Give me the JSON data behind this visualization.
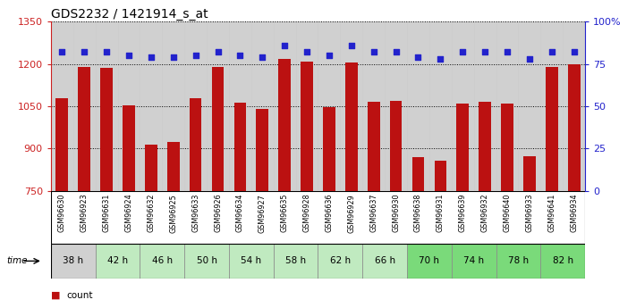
{
  "title": "GDS2232 / 1421914_s_at",
  "samples": [
    "GSM96630",
    "GSM96923",
    "GSM96631",
    "GSM96924",
    "GSM96632",
    "GSM96925",
    "GSM96633",
    "GSM96926",
    "GSM96634",
    "GSM96927",
    "GSM96635",
    "GSM96928",
    "GSM96636",
    "GSM96929",
    "GSM96637",
    "GSM96930",
    "GSM96638",
    "GSM96931",
    "GSM96639",
    "GSM96932",
    "GSM96640",
    "GSM96933",
    "GSM96641",
    "GSM96934"
  ],
  "counts": [
    1080,
    1188,
    1185,
    1052,
    915,
    923,
    1080,
    1188,
    1062,
    1040,
    1218,
    1208,
    1048,
    1205,
    1065,
    1068,
    870,
    858,
    1060,
    1065,
    1060,
    872,
    1190,
    1200
  ],
  "percentile_ranks": [
    82,
    82,
    82,
    80,
    79,
    79,
    80,
    82,
    80,
    79,
    86,
    82,
    80,
    86,
    82,
    82,
    79,
    78,
    82,
    82,
    82,
    78,
    82,
    82
  ],
  "time_groups": [
    {
      "label": "38 h",
      "indices": [
        0,
        1
      ],
      "color": "#d0d0d0"
    },
    {
      "label": "42 h",
      "indices": [
        2,
        3
      ],
      "color": "#c0eac0"
    },
    {
      "label": "46 h",
      "indices": [
        4,
        5
      ],
      "color": "#c0eac0"
    },
    {
      "label": "50 h",
      "indices": [
        6,
        7
      ],
      "color": "#c0eac0"
    },
    {
      "label": "54 h",
      "indices": [
        8,
        9
      ],
      "color": "#c0eac0"
    },
    {
      "label": "58 h",
      "indices": [
        10,
        11
      ],
      "color": "#c0eac0"
    },
    {
      "label": "62 h",
      "indices": [
        12,
        13
      ],
      "color": "#c0eac0"
    },
    {
      "label": "66 h",
      "indices": [
        14,
        15
      ],
      "color": "#c0eac0"
    },
    {
      "label": "70 h",
      "indices": [
        16,
        17
      ],
      "color": "#7ada7a"
    },
    {
      "label": "74 h",
      "indices": [
        18,
        19
      ],
      "color": "#7ada7a"
    },
    {
      "label": "78 h",
      "indices": [
        20,
        21
      ],
      "color": "#7ada7a"
    },
    {
      "label": "82 h",
      "indices": [
        22,
        23
      ],
      "color": "#7ada7a"
    }
  ],
  "sample_bg_color": "#d0d0d0",
  "bar_color": "#bb1111",
  "dot_color": "#2222cc",
  "ylim_left": [
    750,
    1350
  ],
  "ylim_right": [
    0,
    100
  ],
  "yticks_left": [
    750,
    900,
    1050,
    1200,
    1350
  ],
  "yticks_right": [
    0,
    25,
    50,
    75,
    100
  ],
  "ytick_labels_right": [
    "0",
    "25",
    "50",
    "75",
    "100%"
  ],
  "bar_width": 0.55,
  "title_fontsize": 10,
  "left_tick_color": "#cc2222",
  "right_tick_color": "#2222cc"
}
